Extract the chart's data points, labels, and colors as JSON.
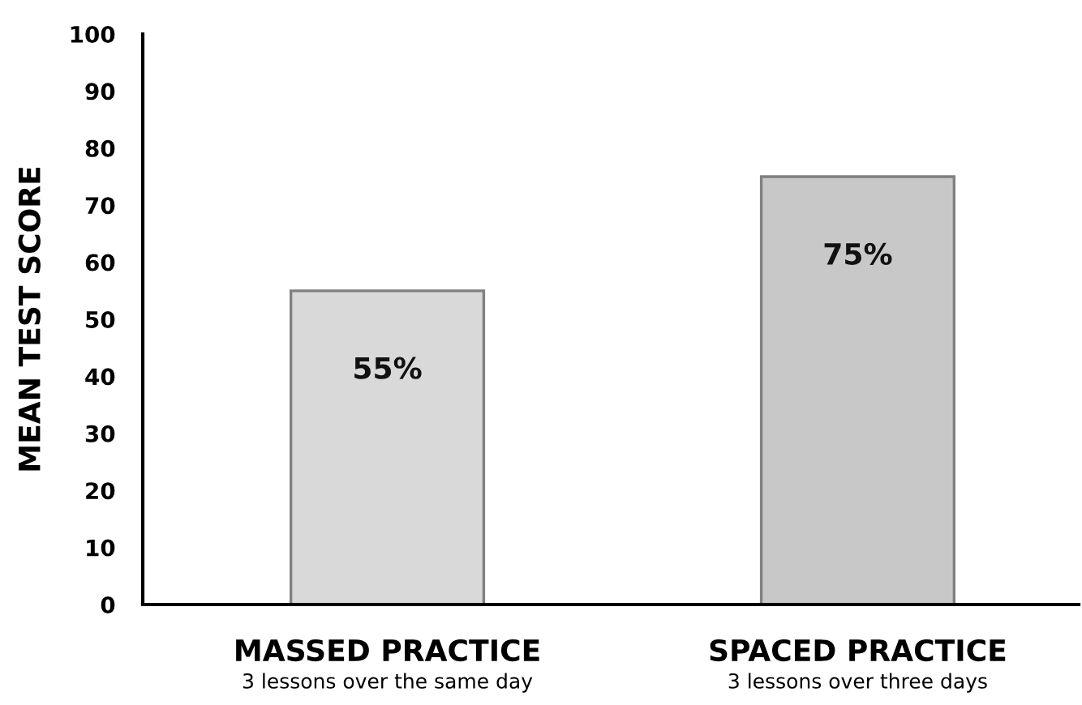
{
  "chart_data": {
    "type": "bar",
    "ylabel": "MEAN TEST SCORE",
    "categories": [
      "MASSED PRACTICE\n3 lessons over the same day",
      "SPACED PRACTICE\n3 lessons over three days"
    ],
    "values": [
      55,
      75
    ],
    "colors": [
      "#d9d9d9",
      "#c8c8c8"
    ],
    "value_labels": [
      "55%",
      "75%"
    ],
    "ylim": [
      0,
      100
    ],
    "yticks": [
      0,
      10,
      20,
      30,
      40,
      50,
      60,
      70,
      80,
      90,
      100
    ],
    "grid": false,
    "legend": false
  }
}
